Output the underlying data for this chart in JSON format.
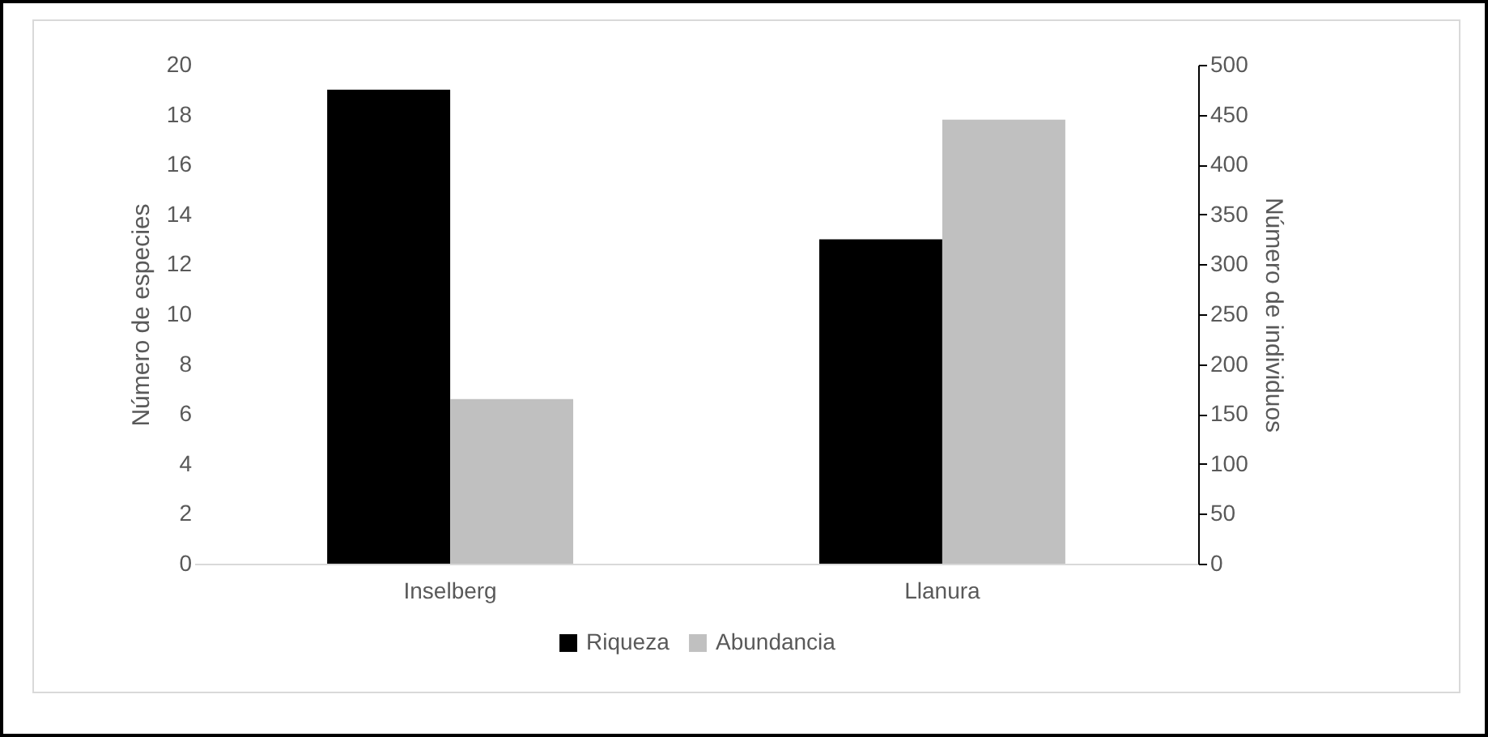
{
  "chart_data": {
    "type": "bar",
    "categories": [
      "Inselberg",
      "Llanura"
    ],
    "series": [
      {
        "name": "Riqueza",
        "color": "#000000",
        "values": [
          19,
          13
        ]
      },
      {
        "name": "Abundancia",
        "color": "#c0c0c0",
        "values": [
          165,
          445
        ],
        "axis": "y2"
      }
    ],
    "ylabel": "Número de especies",
    "y2label": "Número de individuos",
    "ylim": [
      0,
      20
    ],
    "yticks": [
      0,
      2,
      4,
      6,
      8,
      10,
      12,
      14,
      16,
      18,
      20
    ],
    "y2lim": [
      0,
      500
    ],
    "y2ticks": [
      0,
      50,
      100,
      150,
      200,
      250,
      300,
      350,
      400,
      450,
      500
    ],
    "legend": "bottom"
  }
}
